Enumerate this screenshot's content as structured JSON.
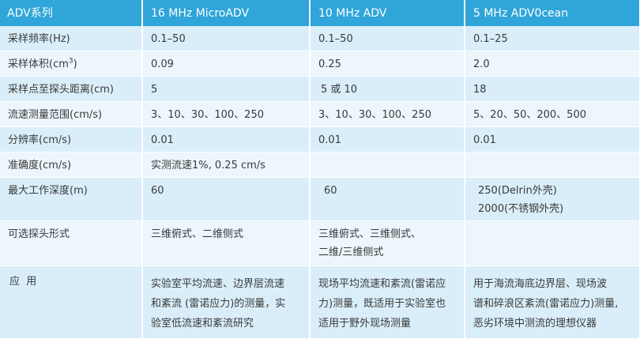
{
  "headers": [
    "ADV系列",
    "16 MHz MicroADV",
    "10 MHz ADV",
    "5 MHz ADV0cean"
  ],
  "rows": [
    {
      "label": "采样频率(Hz)",
      "c1": "0.1–50",
      "c2": "0.1–50",
      "c3": "0.1–25"
    },
    {
      "label_pre": "采样体积(cm",
      "label_sup": "3",
      "label_post": ")",
      "c1": "0.09",
      "c2": "0.25",
      "c3": "2.0"
    },
    {
      "label": "采样点至探头距离(cm)",
      "c1": "5",
      "c2": "5 或 10",
      "c3": "18"
    },
    {
      "label": "流速测量范围(cm/s)",
      "c1": "3、10、30、100、250",
      "c2": "3、10、30、100、250",
      "c3": "5、20、50、200、500"
    },
    {
      "label": "分辨率(cm/s)",
      "c1": "0.01",
      "c2": "0.01",
      "c3": "0.01"
    },
    {
      "label": "准确度(cm/s)",
      "c1": "实测流速1%, 0.25 cm/s",
      "c2": "",
      "c3": ""
    },
    {
      "label": "最大工作深度(m)",
      "c1": "60",
      "c2": "60",
      "c3_lines": [
        "250(Delrin外壳)",
        "2000(不锈钢外壳)"
      ]
    },
    {
      "label": "可选探头形式",
      "c1": "三维俯式、二维侧式",
      "c2_lines": [
        "三维俯式、三维侧式、",
        "二维/三维侧式"
      ],
      "c3": ""
    },
    {
      "label": "应  用",
      "c1_lines": [
        "实验室平均流速、边界层流速",
        "和紊流 (雷诺应力)的测量，实",
        "验室低流速和紊流研究"
      ],
      "c2_lines": [
        "现场平均流速和紊流(雷诺应",
        "力)测量，既适用于实验室也",
        "适用于野外现场测量"
      ],
      "c3_lines": [
        "用于海流海底边界层、现场波",
        "谱和碎浪区紊流(雷诺应力)测量,",
        "恶劣环境中测流的理想仪器"
      ]
    }
  ]
}
